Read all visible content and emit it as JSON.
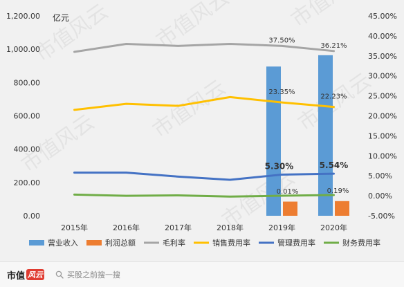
{
  "chart_data": {
    "type": "bar+line",
    "unit_label": "亿元",
    "categories": [
      "2015年",
      "2016年",
      "2017年",
      "2018年",
      "2019年",
      "2020年"
    ],
    "left_axis": {
      "ticks": [
        "1,200.00",
        "1,000.00",
        "800.00",
        "600.00",
        "400.00",
        "200.00",
        "0.00"
      ],
      "ylim": [
        0,
        1200
      ]
    },
    "right_axis": {
      "ticks": [
        "45.00%",
        "40.00%",
        "35.00%",
        "30.00%",
        "25.00%",
        "20.00%",
        "15.00%",
        "10.00%",
        "5.00%",
        "0.00%",
        "-5.00%"
      ],
      "ylim": [
        -5,
        45
      ]
    },
    "bar_series": [
      {
        "name": "营业收入",
        "color": "#5b9bd5",
        "values": [
          null,
          null,
          null,
          null,
          896,
          964
        ]
      },
      {
        "name": "利润总额",
        "color": "#ed7d31",
        "values": [
          null,
          null,
          null,
          null,
          85,
          88
        ]
      }
    ],
    "line_series": [
      {
        "name": "毛利率",
        "color": "#a5a5a5",
        "values": [
          36.0,
          38.0,
          37.5,
          38.0,
          37.5,
          36.21
        ],
        "labels": [
          null,
          null,
          null,
          null,
          "37.50%",
          "36.21%"
        ]
      },
      {
        "name": "销售费用率",
        "color": "#ffc000",
        "values": [
          21.5,
          23.0,
          22.5,
          24.7,
          23.35,
          22.23
        ],
        "labels": [
          null,
          null,
          null,
          null,
          "23.35%",
          "22.23%"
        ]
      },
      {
        "name": "管理费用率",
        "color": "#4472c4",
        "values": [
          5.8,
          5.8,
          4.8,
          4.0,
          5.3,
          5.54
        ],
        "labels": [
          null,
          null,
          null,
          null,
          "5.30%",
          "5.54%"
        ]
      },
      {
        "name": "财务费用率",
        "color": "#70ad47",
        "values": [
          0.3,
          0.0,
          0.1,
          -0.2,
          0.01,
          0.19
        ],
        "labels": [
          null,
          null,
          null,
          null,
          "0.01%",
          "0.19%"
        ]
      }
    ],
    "legend": [
      "营业收入",
      "利润总额",
      "毛利率",
      "销售费用率",
      "管理费用率",
      "财务费用率"
    ],
    "legend_position": "bottom",
    "grid": false
  },
  "watermark": "市值风云",
  "footer": {
    "brand": "市值",
    "brand_badge": "风云",
    "search_placeholder": "买股之前搜一搜"
  }
}
